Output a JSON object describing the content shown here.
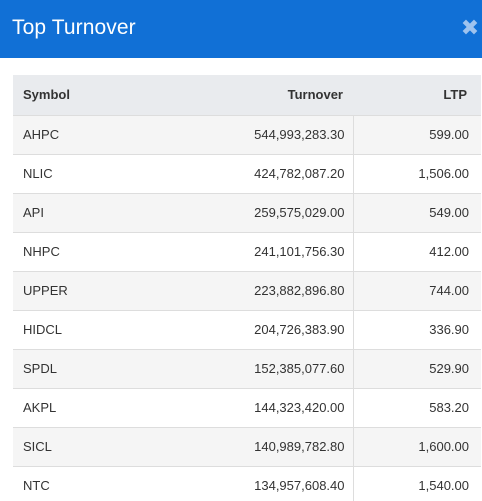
{
  "modal": {
    "title": "Top Turnover",
    "close_label": "✖"
  },
  "table": {
    "headers": {
      "symbol": "Symbol",
      "turnover": "Turnover",
      "ltp": "LTP"
    },
    "rows": [
      {
        "symbol": "AHPC",
        "turnover": "544,993,283.30",
        "ltp": "599.00"
      },
      {
        "symbol": "NLIC",
        "turnover": "424,782,087.20",
        "ltp": "1,506.00"
      },
      {
        "symbol": "API",
        "turnover": "259,575,029.00",
        "ltp": "549.00"
      },
      {
        "symbol": "NHPC",
        "turnover": "241,101,756.30",
        "ltp": "412.00"
      },
      {
        "symbol": "UPPER",
        "turnover": "223,882,896.80",
        "ltp": "744.00"
      },
      {
        "symbol": "HIDCL",
        "turnover": "204,726,383.90",
        "ltp": "336.90"
      },
      {
        "symbol": "SPDL",
        "turnover": "152,385,077.60",
        "ltp": "529.90"
      },
      {
        "symbol": "AKPL",
        "turnover": "144,323,420.00",
        "ltp": "583.20"
      },
      {
        "symbol": "SICL",
        "turnover": "140,989,782.80",
        "ltp": "1,600.00"
      },
      {
        "symbol": "NTC",
        "turnover": "134,957,608.40",
        "ltp": "1,540.00"
      }
    ]
  },
  "colors": {
    "header_bg": "#1170d6",
    "table_head_bg": "#e9ebee",
    "row_stripe": "#f5f5f5"
  }
}
